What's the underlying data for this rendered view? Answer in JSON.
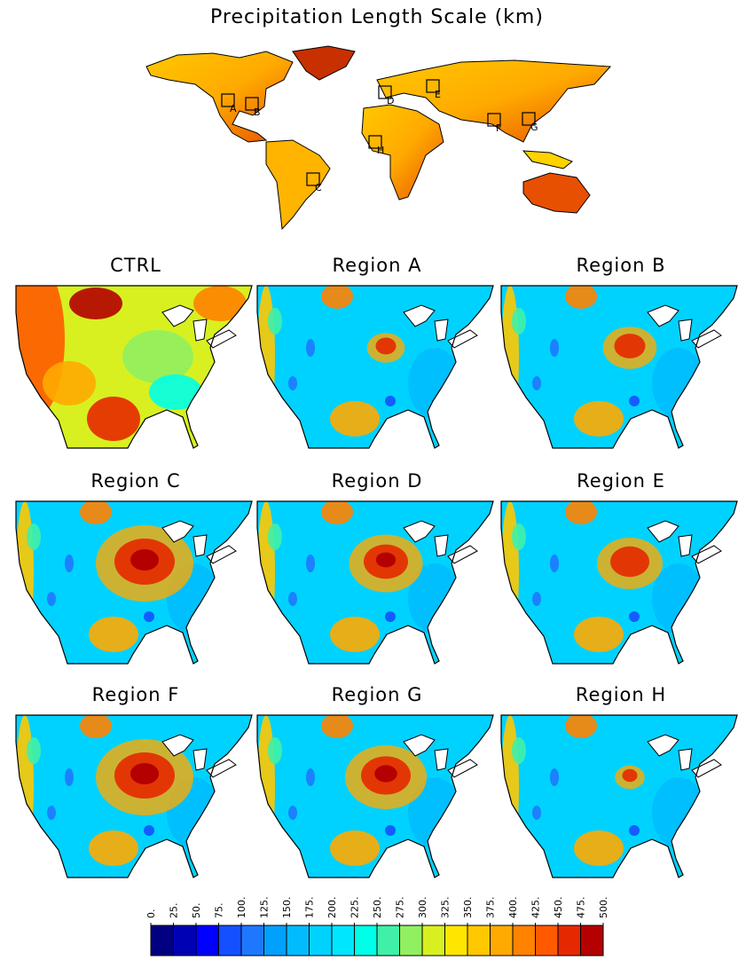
{
  "title": "Precipitation Length Scale (km)",
  "world_map": {
    "regions": [
      "A",
      "B",
      "C",
      "D",
      "E",
      "F",
      "G",
      "H"
    ]
  },
  "panels": [
    "CTRL",
    "Region A",
    "Region B",
    "Region C",
    "Region D",
    "Region E",
    "Region F",
    "Region G",
    "Region H"
  ],
  "colorbar": {
    "ticks": [
      {
        "value": 0,
        "label": "0."
      },
      {
        "value": 25,
        "label": "25."
      },
      {
        "value": 50,
        "label": "50."
      },
      {
        "value": 75,
        "label": "75."
      },
      {
        "value": 100,
        "label": "100."
      },
      {
        "value": 125,
        "label": "125."
      },
      {
        "value": 150,
        "label": "150."
      },
      {
        "value": 175,
        "label": "175."
      },
      {
        "value": 200,
        "label": "200."
      },
      {
        "value": 225,
        "label": "225."
      },
      {
        "value": 250,
        "label": "250."
      },
      {
        "value": 275,
        "label": "275."
      },
      {
        "value": 300,
        "label": "300."
      },
      {
        "value": 325,
        "label": "325."
      },
      {
        "value": 350,
        "label": "350."
      },
      {
        "value": 375,
        "label": "375."
      },
      {
        "value": 400,
        "label": "400."
      },
      {
        "value": 425,
        "label": "425."
      },
      {
        "value": 450,
        "label": "450."
      },
      {
        "value": 475,
        "label": "475."
      },
      {
        "value": 500,
        "label": "500."
      }
    ],
    "colors": [
      "#000080",
      "#0000b4",
      "#0000ff",
      "#1450ff",
      "#1e78ff",
      "#00a0ff",
      "#00bcff",
      "#00d2ff",
      "#00e6ff",
      "#00ffe8",
      "#40f0a8",
      "#90f060",
      "#d8f020",
      "#ffe600",
      "#ffc800",
      "#ffaa00",
      "#ff8200",
      "#ff5a00",
      "#e62800",
      "#b40000"
    ]
  }
}
